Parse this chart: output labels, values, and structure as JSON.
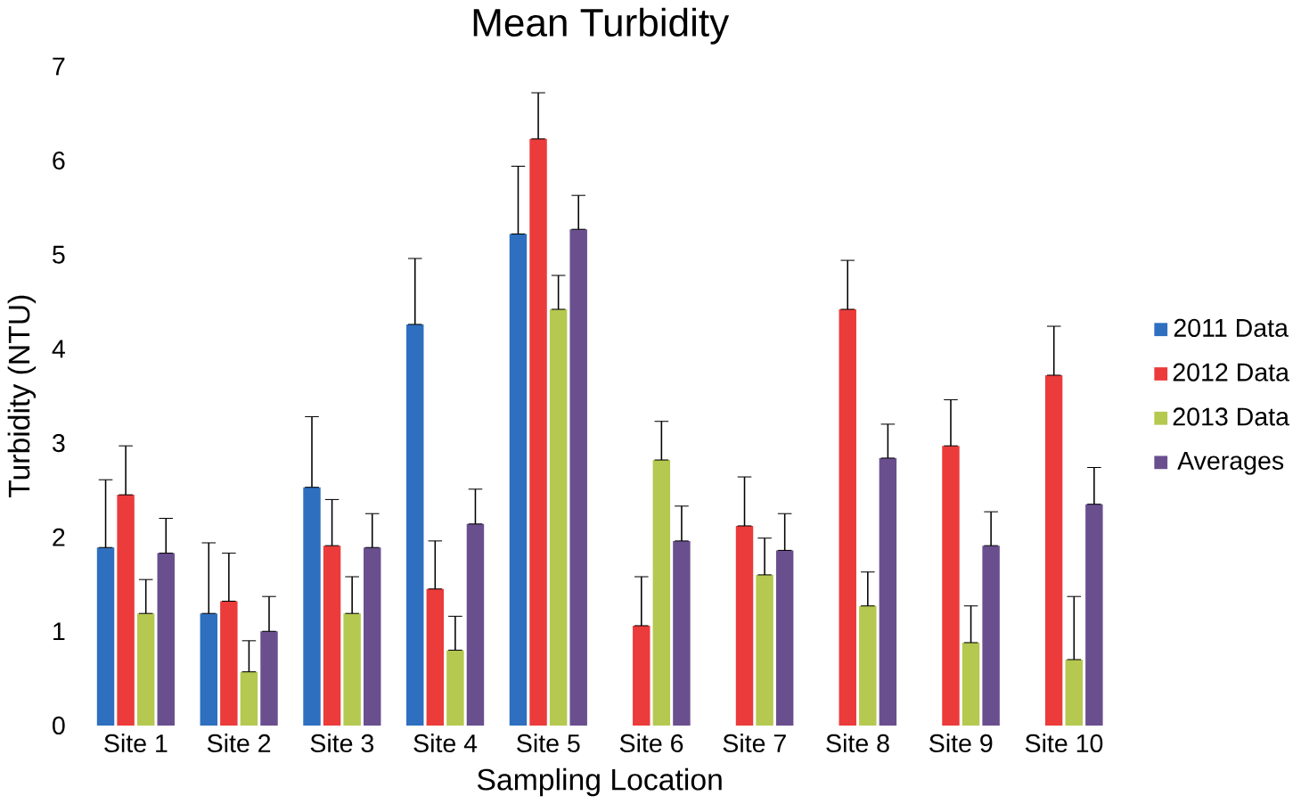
{
  "chart_data": {
    "type": "bar",
    "title": "Mean Turbidity",
    "xlabel": "Sampling Location",
    "ylabel": "Turbidity (NTU)",
    "categories": [
      "Site 1",
      "Site 2",
      "Site 3",
      "Site 4",
      "Site 5",
      "Site 6",
      "Site 7",
      "Site 8",
      "Site 9",
      "Site 10"
    ],
    "series": [
      {
        "name": "2011 Data",
        "color": "#2e6fc0",
        "values": [
          1.89,
          1.19,
          2.53,
          4.26,
          5.22,
          null,
          null,
          null,
          null,
          null
        ],
        "errors": [
          [
            1.89,
            2.61
          ],
          [
            1.19,
            1.94
          ],
          [
            2.53,
            3.28
          ],
          [
            4.26,
            4.96
          ],
          [
            5.22,
            5.94
          ],
          null,
          null,
          null,
          null,
          null
        ]
      },
      {
        "name": "2012 Data",
        "color": "#ec3b3b",
        "values": [
          2.45,
          1.32,
          1.91,
          1.45,
          6.23,
          1.06,
          2.12,
          4.42,
          2.97,
          3.72
        ],
        "errors": [
          [
            2.45,
            2.97
          ],
          [
            1.32,
            1.83
          ],
          [
            1.91,
            2.4
          ],
          [
            1.45,
            1.96
          ],
          [
            6.23,
            6.72
          ],
          [
            1.06,
            1.58
          ],
          [
            2.12,
            2.64
          ],
          [
            4.42,
            4.94
          ],
          [
            2.97,
            3.46
          ],
          [
            3.72,
            4.24
          ]
        ]
      },
      {
        "name": "2013 Data",
        "color": "#b5c850",
        "values": [
          1.19,
          0.57,
          1.19,
          0.8,
          4.42,
          2.82,
          1.6,
          1.27,
          0.88,
          0.7
        ],
        "errors": [
          [
            1.19,
            1.55
          ],
          [
            0.57,
            0.9
          ],
          [
            1.19,
            1.58
          ],
          [
            0.8,
            1.16
          ],
          [
            4.42,
            4.78
          ],
          [
            2.82,
            3.23
          ],
          [
            1.6,
            1.99
          ],
          [
            1.27,
            1.63
          ],
          [
            0.88,
            1.27
          ],
          [
            0.7,
            1.37
          ]
        ]
      },
      {
        "name": "Averages",
        "color": "#6a4f8f",
        "values": [
          1.83,
          1.0,
          1.89,
          2.14,
          5.27,
          1.96,
          1.86,
          2.84,
          1.91,
          2.35
        ],
        "errors": [
          [
            1.83,
            2.2
          ],
          [
            1.0,
            1.37
          ],
          [
            1.89,
            2.25
          ],
          [
            2.14,
            2.51
          ],
          [
            5.27,
            5.63
          ],
          [
            1.96,
            2.33
          ],
          [
            1.86,
            2.25
          ],
          [
            2.84,
            3.2
          ],
          [
            1.91,
            2.27
          ],
          [
            2.35,
            2.74
          ]
        ]
      }
    ],
    "ylim": [
      0,
      7
    ],
    "yticks": [
      0,
      1,
      2,
      3,
      4,
      5,
      6,
      7
    ],
    "grid": false,
    "legend": "right"
  }
}
